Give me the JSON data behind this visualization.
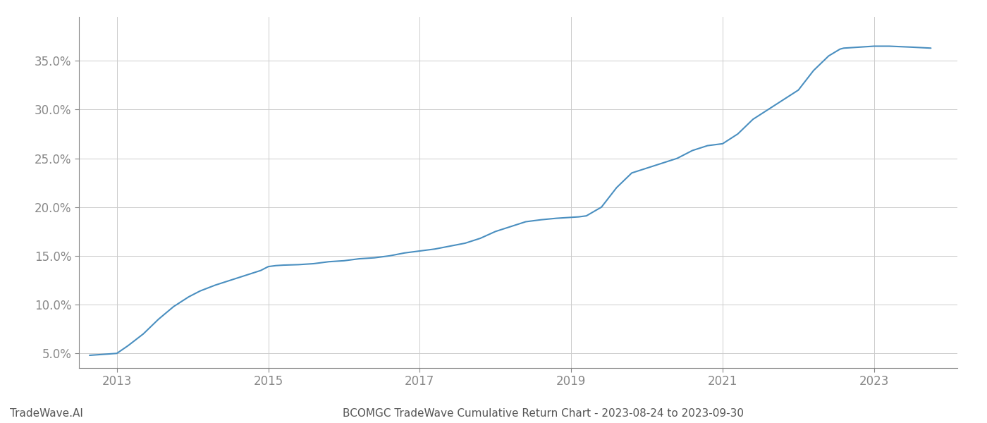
{
  "title": "BCOMGC TradeWave Cumulative Return Chart - 2023-08-24 to 2023-09-30",
  "watermark": "TradeWave.AI",
  "line_color": "#4a8fc0",
  "background_color": "#ffffff",
  "grid_color": "#cccccc",
  "x_data": [
    2012.64,
    2013.0,
    2013.15,
    2013.35,
    2013.55,
    2013.75,
    2013.95,
    2014.1,
    2014.3,
    2014.5,
    2014.7,
    2014.9,
    2015.0,
    2015.1,
    2015.2,
    2015.4,
    2015.6,
    2015.8,
    2016.0,
    2016.2,
    2016.4,
    2016.6,
    2016.8,
    2017.0,
    2017.2,
    2017.4,
    2017.6,
    2017.8,
    2018.0,
    2018.2,
    2018.4,
    2018.6,
    2018.8,
    2018.9,
    2019.0,
    2019.1,
    2019.2,
    2019.4,
    2019.6,
    2019.8,
    2020.0,
    2020.2,
    2020.4,
    2020.6,
    2020.8,
    2021.0,
    2021.2,
    2021.4,
    2021.6,
    2021.8,
    2022.0,
    2022.1,
    2022.2,
    2022.4,
    2022.55,
    2022.6,
    2022.8,
    2023.0,
    2023.2,
    2023.5,
    2023.75
  ],
  "y_data": [
    4.8,
    5.0,
    5.8,
    7.0,
    8.5,
    9.8,
    10.8,
    11.4,
    12.0,
    12.5,
    13.0,
    13.5,
    13.9,
    14.0,
    14.05,
    14.1,
    14.2,
    14.4,
    14.5,
    14.7,
    14.8,
    15.0,
    15.3,
    15.5,
    15.7,
    16.0,
    16.3,
    16.8,
    17.5,
    18.0,
    18.5,
    18.7,
    18.85,
    18.9,
    18.95,
    19.0,
    19.1,
    20.0,
    22.0,
    23.5,
    24.0,
    24.5,
    25.0,
    25.8,
    26.3,
    26.5,
    27.5,
    29.0,
    30.0,
    31.0,
    32.0,
    33.0,
    34.0,
    35.5,
    36.2,
    36.3,
    36.4,
    36.5,
    36.5,
    36.4,
    36.3
  ],
  "ylim": [
    3.5,
    39.5
  ],
  "yticks": [
    5.0,
    10.0,
    15.0,
    20.0,
    25.0,
    30.0,
    35.0
  ],
  "xlim": [
    2012.5,
    2024.1
  ],
  "xticks": [
    2013,
    2015,
    2017,
    2019,
    2021,
    2023
  ],
  "title_fontsize": 11,
  "watermark_fontsize": 11,
  "tick_fontsize": 12,
  "line_width": 1.5,
  "spine_color": "#888888",
  "tick_color": "#888888",
  "text_color": "#555555"
}
